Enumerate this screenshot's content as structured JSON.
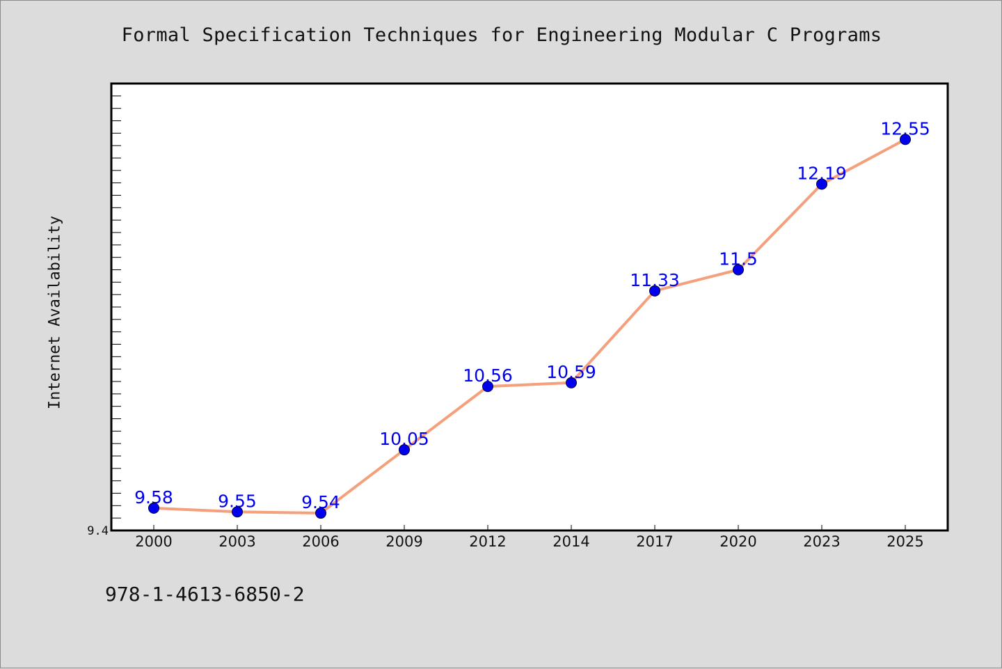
{
  "chart_data": {
    "type": "line",
    "title": "Formal Specification Techniques for Engineering Modular C Programs",
    "ylabel": "Internet Availability",
    "xlabel": "",
    "categories": [
      "2000",
      "2003",
      "2006",
      "2009",
      "2012",
      "2014",
      "2017",
      "2020",
      "2023",
      "2025"
    ],
    "series": [
      {
        "values": [
          9.58,
          9.55,
          9.54,
          10.05,
          10.56,
          10.59,
          11.33,
          11.5,
          12.19,
          12.55
        ],
        "labels": [
          "9.58",
          "9.55",
          "9.54",
          "10.05",
          "10.56",
          "10.59",
          "11.33",
          "11.5",
          "12.19",
          "12.55"
        ],
        "line_color": "#f4a07c",
        "marker_color": "#0000ee"
      }
    ],
    "ylim": [
      9.4,
      13.0
    ],
    "ytick_labels": [
      "9.4"
    ],
    "grid": false,
    "legend": "none"
  },
  "footer_note": "978-1-4613-6850-2"
}
